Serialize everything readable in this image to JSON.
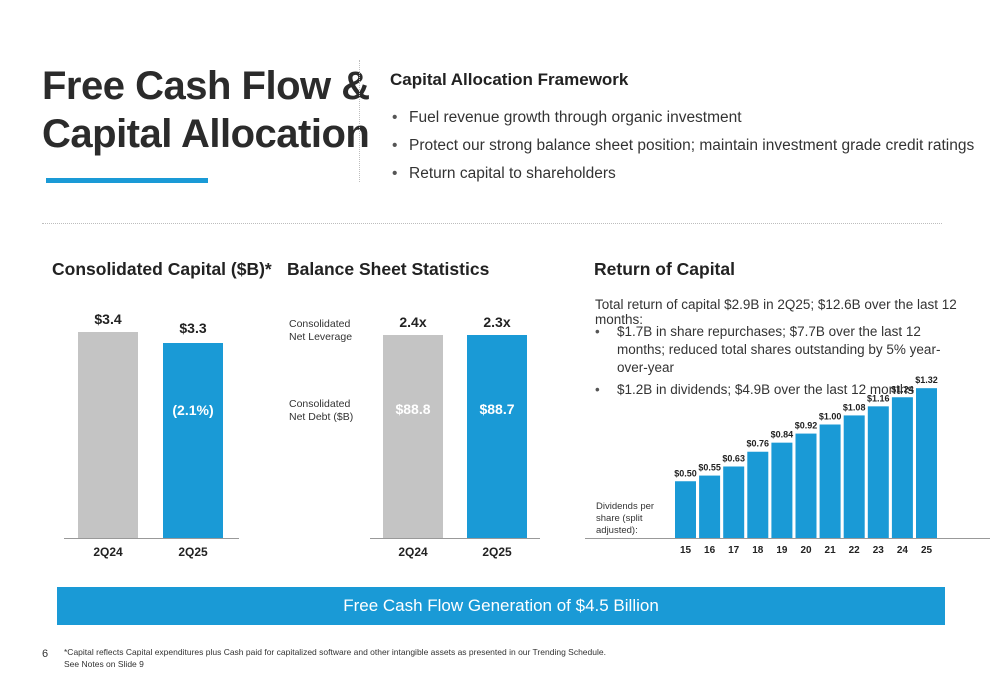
{
  "title": {
    "line1": "Free Cash Flow &",
    "line2": "Capital Allocation"
  },
  "framework": {
    "title": "Capital Allocation Framework",
    "bullets": [
      "Fuel revenue growth through organic investment",
      "Protect our strong balance sheet position; maintain investment grade credit ratings",
      "Return capital to shareholders"
    ]
  },
  "consolidated_capital": {
    "title": "Consolidated Capital ($B)*",
    "bars": [
      {
        "category": "2Q24",
        "value_label": "$3.4",
        "inner_label": ""
      },
      {
        "category": "2Q25",
        "value_label": "$3.3",
        "inner_label": "(2.1%)"
      }
    ]
  },
  "balance_sheet": {
    "title": "Balance Sheet Statistics",
    "leverage_label": "Consolidated Net Leverage",
    "debt_label": "Consolidated Net Debt ($B)",
    "bars": [
      {
        "category": "2Q24",
        "leverage": "2.4x",
        "debt": "$88.8"
      },
      {
        "category": "2Q25",
        "leverage": "2.3x",
        "debt": "$88.7"
      }
    ]
  },
  "return_of_capital": {
    "title": "Return of Capital",
    "intro": "Total return of capital $2.9B in 2Q25; $12.6B over the last 12 months:",
    "bullets": [
      "$1.7B in share repurchases; $7.7B over the last 12 months; reduced total shares outstanding by 5% year-over-year",
      "$1.2B in dividends; $4.9B over the last 12 months"
    ],
    "dividends_label": "Dividends per share (split adjusted):"
  },
  "chart_data": [
    {
      "type": "bar",
      "title": "Consolidated Capital ($B)*",
      "categories": [
        "2Q24",
        "2Q25"
      ],
      "values": [
        3.4,
        3.3
      ],
      "value_labels": [
        "$3.4",
        "$3.3"
      ],
      "annotations": [
        "(2.1%)"
      ],
      "colors": [
        "#c4c4c4",
        "#1a9ad6"
      ]
    },
    {
      "type": "bar",
      "title": "Balance Sheet Statistics",
      "categories": [
        "2Q24",
        "2Q25"
      ],
      "series": [
        {
          "name": "Consolidated Net Leverage",
          "values": [
            2.4,
            2.3
          ],
          "labels": [
            "2.4x",
            "2.3x"
          ]
        },
        {
          "name": "Consolidated Net Debt ($B)",
          "values": [
            88.8,
            88.7
          ],
          "labels": [
            "$88.8",
            "$88.7"
          ]
        }
      ],
      "colors": [
        "#c4c4c4",
        "#1a9ad6"
      ]
    },
    {
      "type": "bar",
      "title": "",
      "ylabel": "Dividends per share (split adjusted):",
      "categories": [
        "15",
        "16",
        "17",
        "18",
        "19",
        "20",
        "21",
        "22",
        "23",
        "24",
        "25"
      ],
      "values": [
        0.5,
        0.55,
        0.63,
        0.76,
        0.84,
        0.92,
        1.0,
        1.08,
        1.16,
        1.24,
        1.32
      ],
      "value_labels": [
        "$0.50",
        "$0.55",
        "$0.63",
        "$0.76",
        "$0.84",
        "$0.92",
        "$1.00",
        "$1.08",
        "$1.16",
        "$1.24",
        "$1.32"
      ],
      "color": "#1a9ad6"
    }
  ],
  "banner": "Free Cash Flow Generation of $4.5 Billion",
  "page_number": "6",
  "footnote": {
    "line1": "*Capital reflects Capital expenditures plus Cash paid for capitalized software and other intangible assets as presented in our Trending Schedule.",
    "line2": "See Notes on Slide 9"
  },
  "colors": {
    "accent": "#1a9ad6",
    "grey_bar": "#c4c4c4"
  }
}
